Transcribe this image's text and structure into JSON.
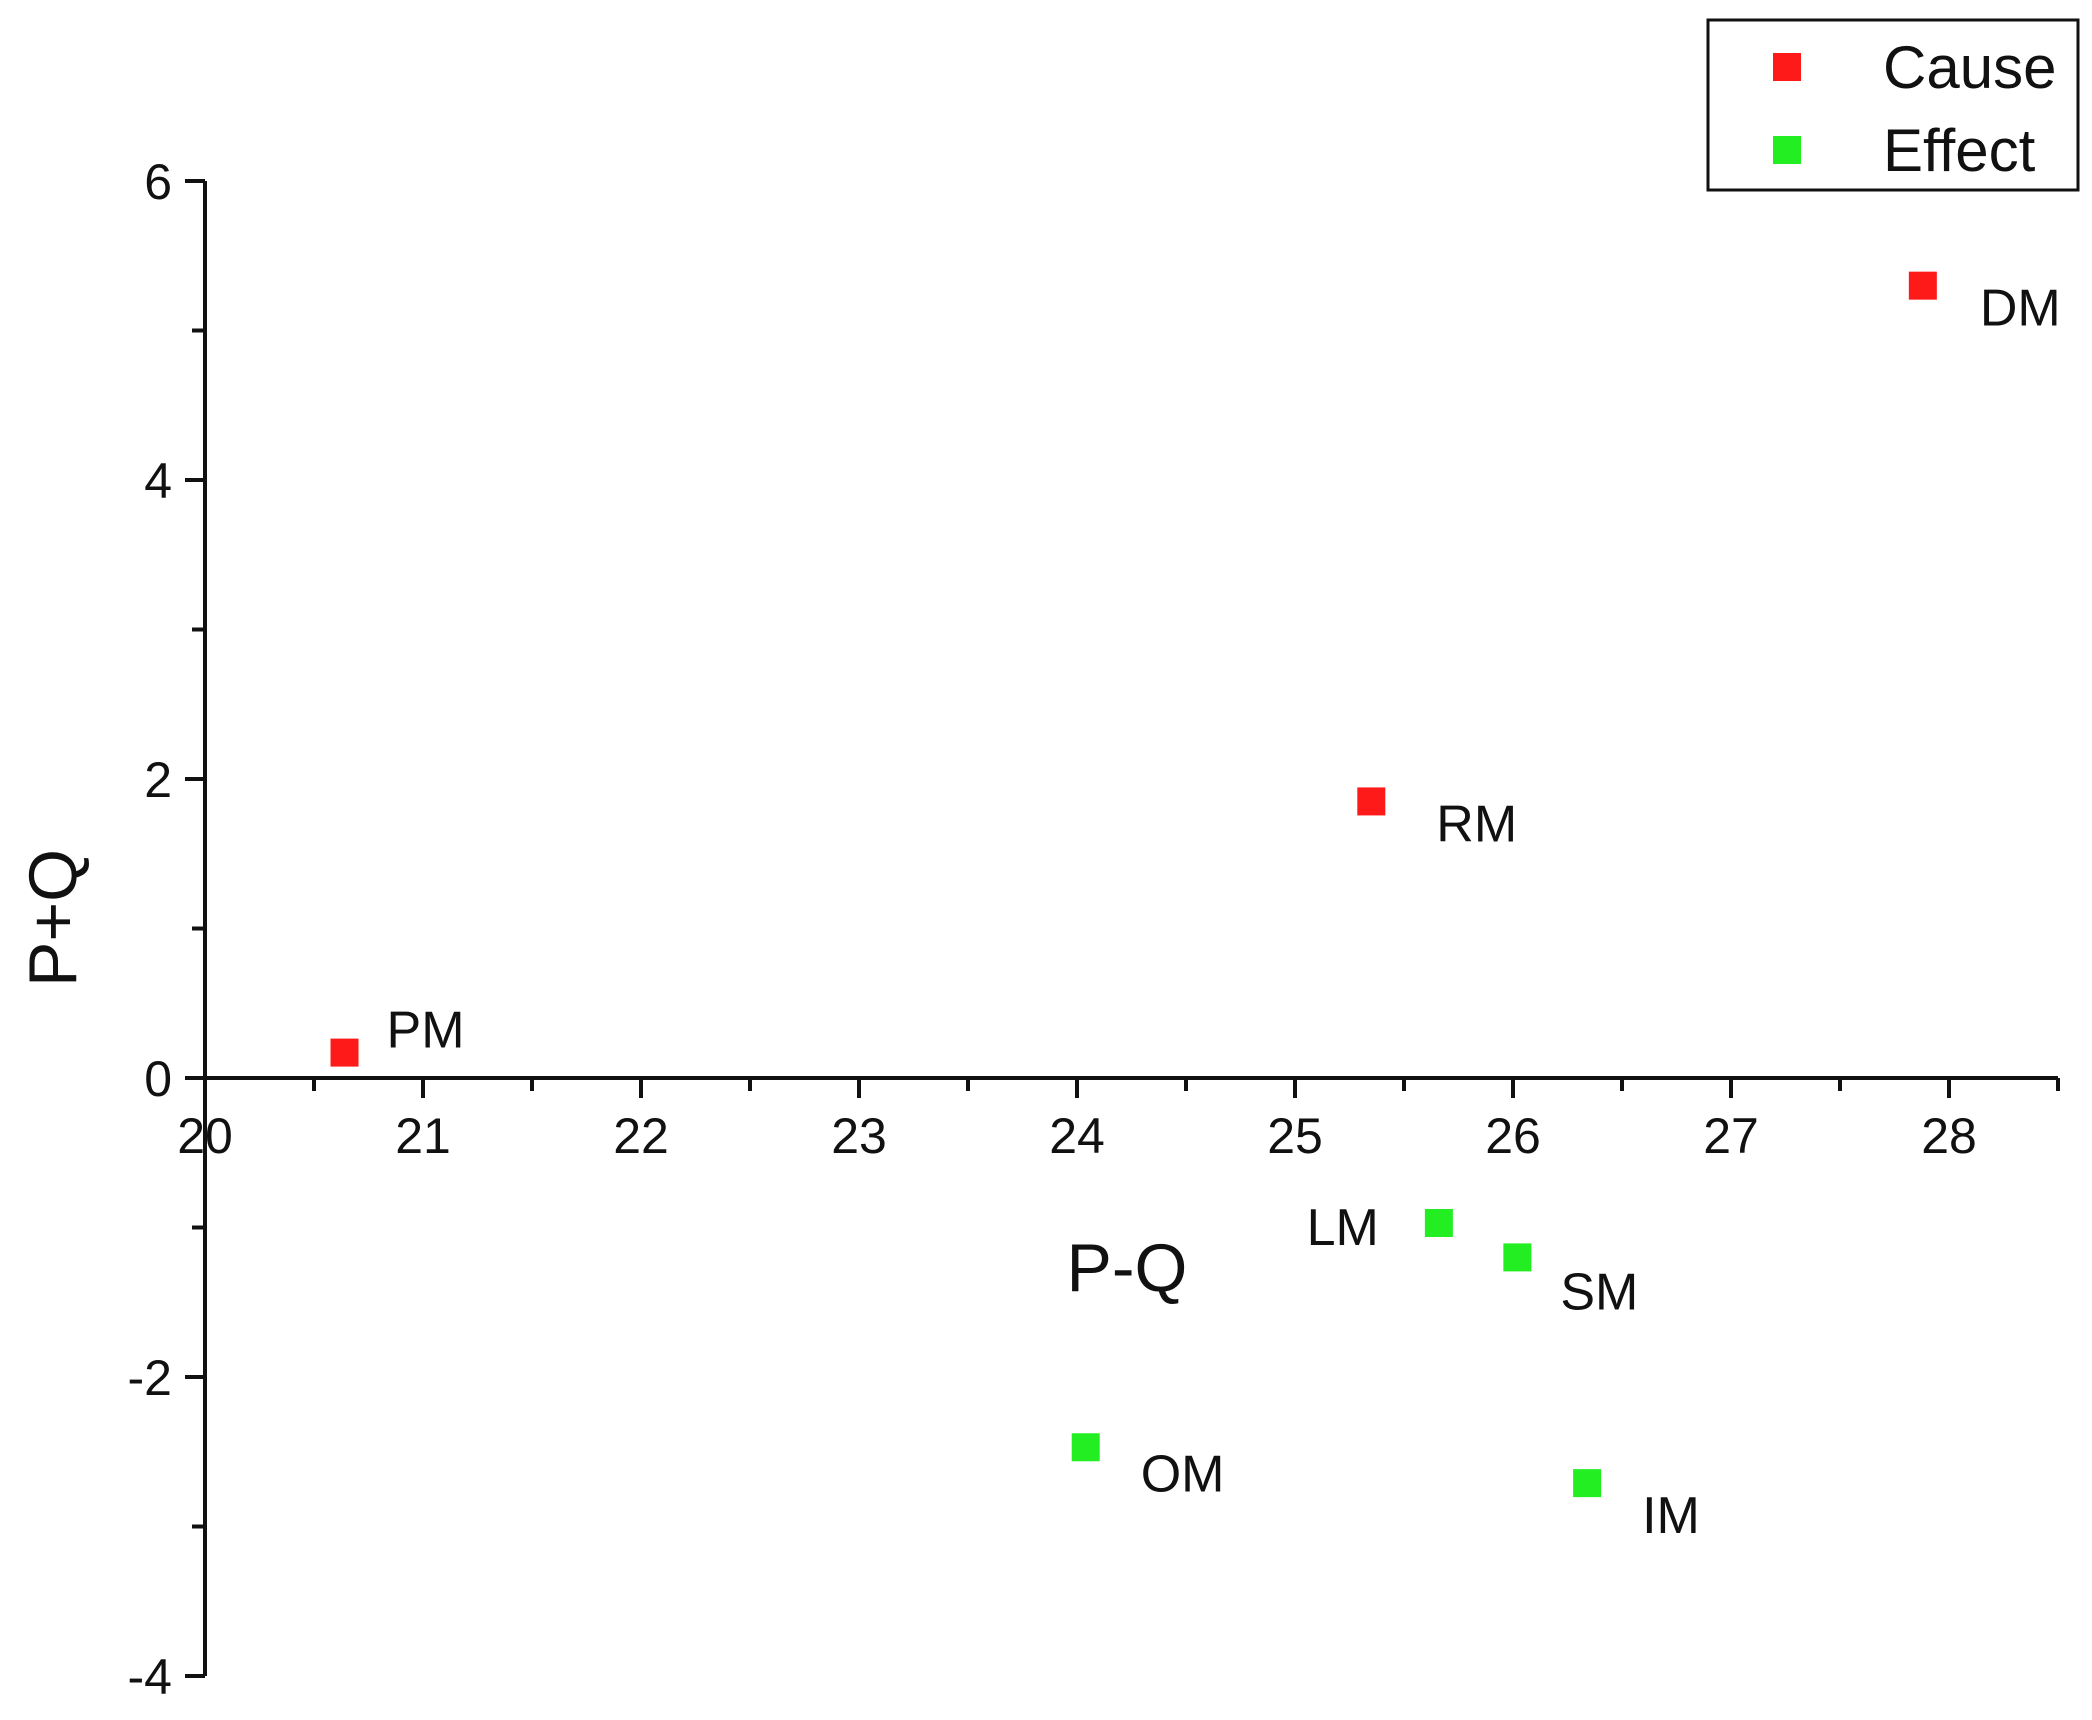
{
  "chart_data": {
    "type": "scatter",
    "xlabel": "P-Q",
    "ylabel": "P+Q",
    "xlim": [
      20,
      28.5
    ],
    "ylim": [
      -4,
      6
    ],
    "x_ticks": [
      "20",
      "21",
      "22",
      "23",
      "24",
      "25",
      "26",
      "27",
      "28"
    ],
    "y_ticks": [
      "-4",
      "-2",
      "0",
      "2",
      "4",
      "6"
    ],
    "grid": false,
    "legend_position": "top-right",
    "series": [
      {
        "name": "Cause",
        "color": "#ff1a1a",
        "points": [
          {
            "label": "PM",
            "x": 20.64,
            "y": 0.17
          },
          {
            "label": "RM",
            "x": 25.35,
            "y": 1.85
          },
          {
            "label": "DM",
            "x": 27.88,
            "y": 5.3
          }
        ]
      },
      {
        "name": "Effect",
        "color": "#22ee22",
        "points": [
          {
            "label": "LM",
            "x": 25.66,
            "y": -0.97
          },
          {
            "label": "SM",
            "x": 26.02,
            "y": -1.2
          },
          {
            "label": "OM",
            "x": 24.04,
            "y": -2.47
          },
          {
            "label": "IM",
            "x": 26.34,
            "y": -2.71
          }
        ]
      }
    ]
  }
}
